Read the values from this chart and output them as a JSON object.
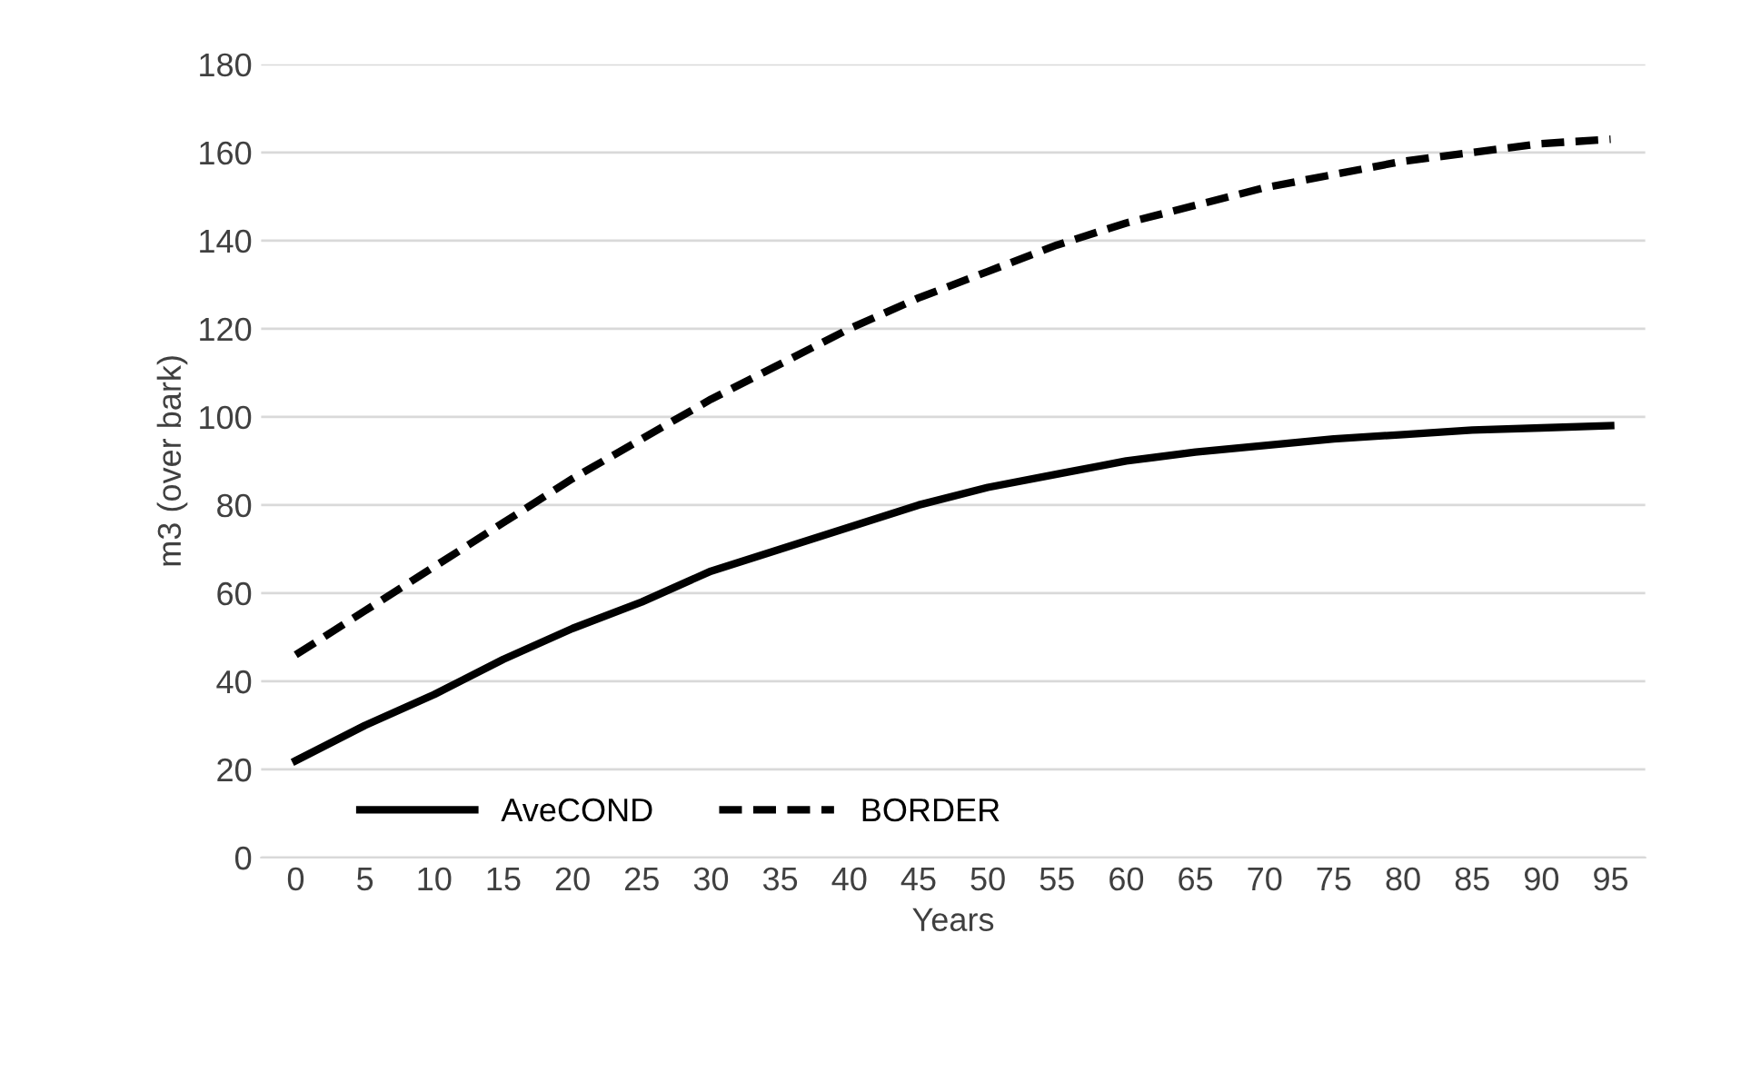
{
  "chart_data": {
    "type": "line",
    "xlabel": "Years",
    "ylabel": "m3 (over bark)",
    "categories": [
      "0",
      "5",
      "10",
      "15",
      "20",
      "25",
      "30",
      "35",
      "40",
      "45",
      "50",
      "55",
      "60",
      "65",
      "70",
      "75",
      "80",
      "85",
      "90",
      "95"
    ],
    "series": [
      {
        "name": "AveCOND",
        "color": "#000000",
        "line_style": "solid",
        "values": [
          22,
          30,
          37,
          45,
          52,
          58,
          65,
          70,
          75,
          80,
          84,
          87,
          90,
          92,
          93.5,
          95,
          96,
          97,
          97.5,
          98
        ]
      },
      {
        "name": "BORDER",
        "color": "#000000",
        "line_style": "dashed",
        "values": [
          46,
          56,
          66,
          76,
          86,
          95,
          104,
          112,
          120,
          127,
          133,
          139,
          144,
          148,
          152,
          155,
          158,
          160,
          162,
          163
        ]
      }
    ],
    "ylim": [
      0,
      180
    ],
    "yticks": [
      0,
      20,
      40,
      60,
      80,
      100,
      120,
      140,
      160,
      180
    ],
    "grid": "y",
    "legend": "bottom left",
    "marker": "none"
  }
}
